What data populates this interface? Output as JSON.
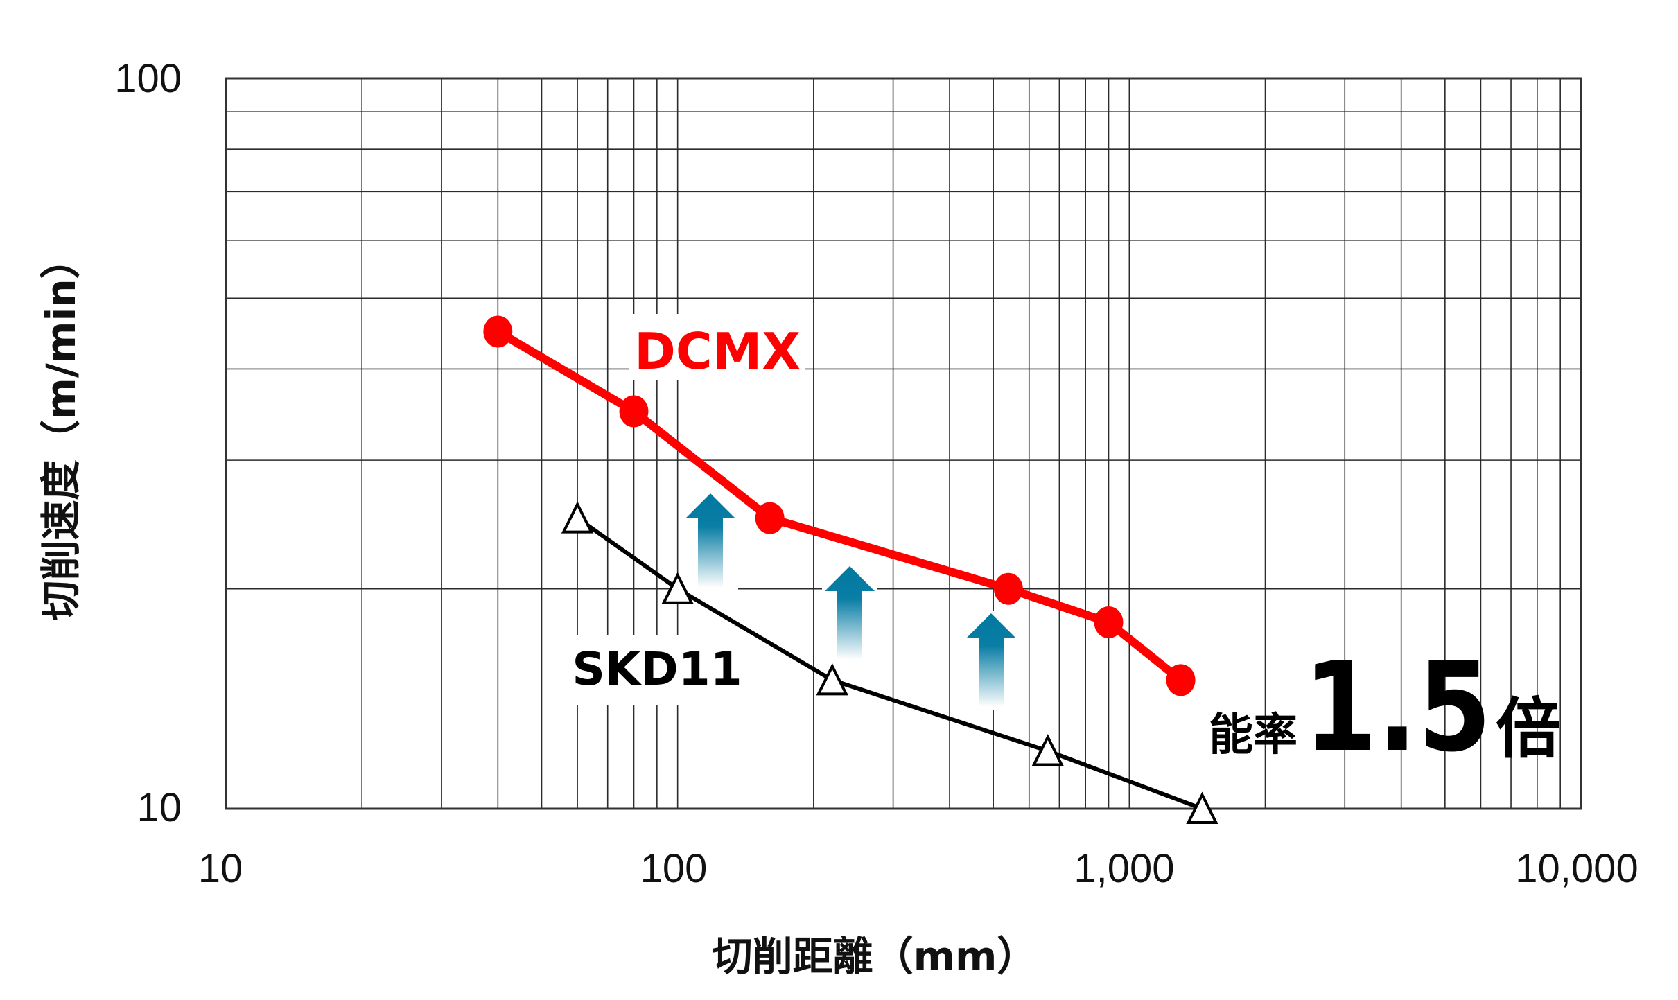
{
  "chart_data": {
    "type": "line",
    "title": "",
    "xlabel": "切削距離（mm）",
    "ylabel": "切削速度（m/min）",
    "xscale": "log",
    "yscale": "log",
    "xlim": [
      10,
      10000
    ],
    "ylim": [
      10,
      100
    ],
    "x_ticks": [
      10,
      100,
      1000,
      10000
    ],
    "x_tick_labels": [
      "10",
      "100",
      "1,000",
      "10,000"
    ],
    "y_ticks": [
      10,
      100
    ],
    "y_tick_labels": [
      "10",
      "100"
    ],
    "grid": true,
    "legend": "inline labels",
    "series": [
      {
        "name": "DCMX",
        "color": "#ff0000",
        "marker": "filled-circle",
        "x": [
          40,
          80,
          160,
          540,
          900,
          1300
        ],
        "y": [
          45,
          35,
          25,
          20,
          18,
          15
        ]
      },
      {
        "name": "SKD11",
        "color": "#000000",
        "marker": "open-triangle",
        "x": [
          60,
          100,
          220,
          660,
          1450
        ],
        "y": [
          25,
          20,
          15,
          12,
          10
        ]
      }
    ],
    "annotations": [
      {
        "text_prefix": "能率",
        "text_value": "1.5",
        "text_suffix": "倍",
        "meaning": "efficiency 1.5x"
      },
      {
        "type": "up-arrows",
        "count": 3,
        "color": "#0078a0"
      }
    ]
  },
  "labels": {
    "dcmx": "DCMX",
    "skd11": "SKD11",
    "efficiency_prefix": "能率",
    "efficiency_value": "1.5",
    "efficiency_suffix": "倍"
  },
  "colors": {
    "dcmx": "#ff0000",
    "skd11": "#000000",
    "arrow": "#0078a0",
    "grid": "#2b2b2b"
  }
}
